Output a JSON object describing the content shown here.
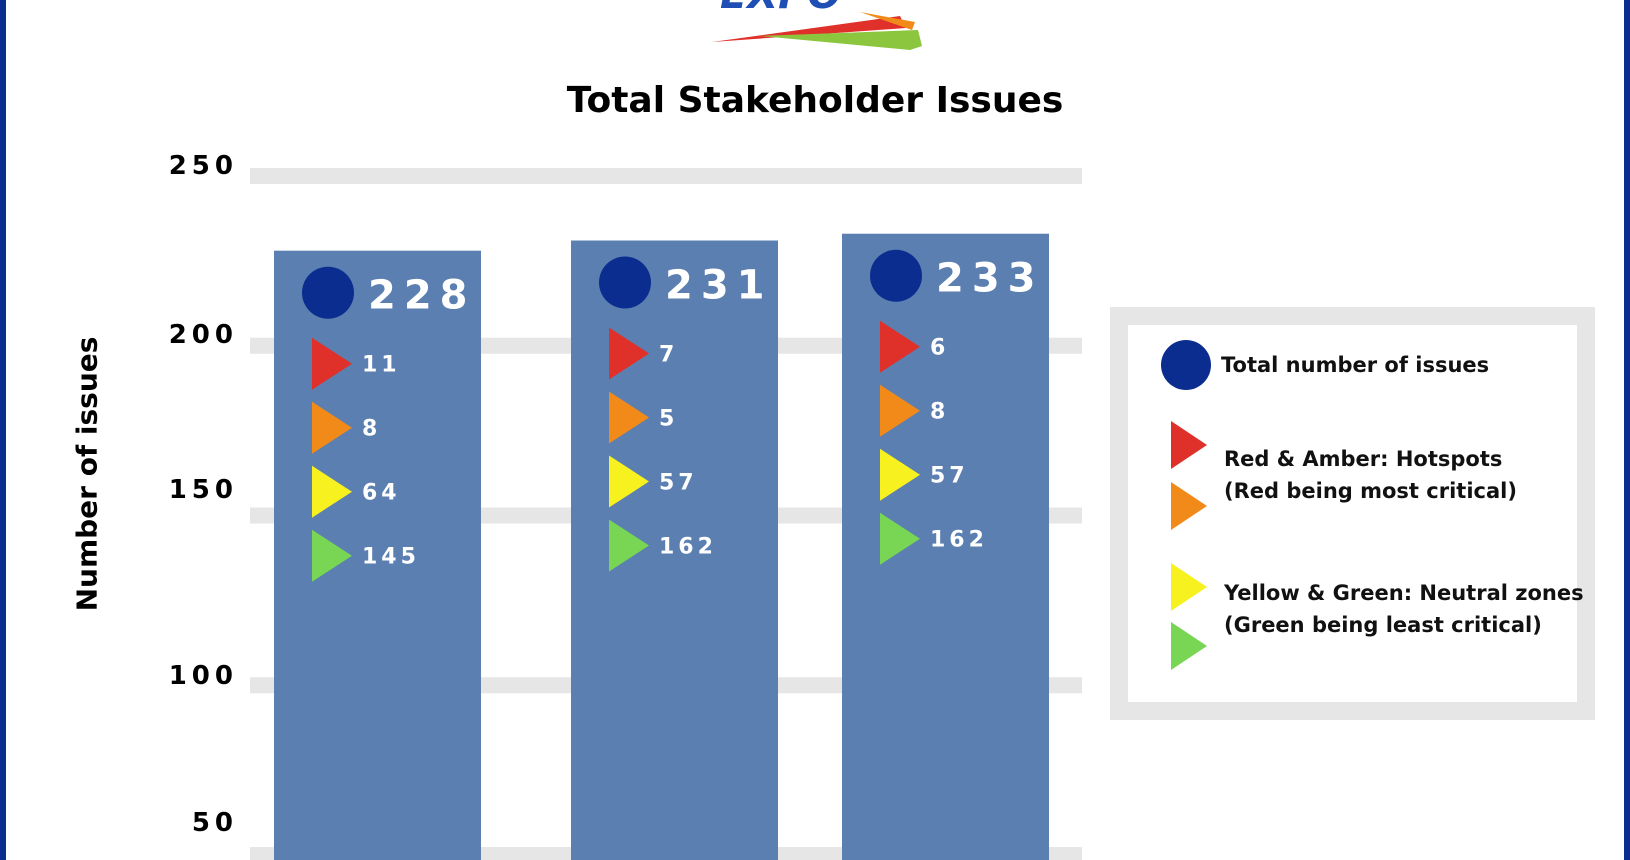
{
  "chart_data": {
    "type": "bar",
    "title": "Total Stakeholder Issues",
    "ylabel": "Number of  issues",
    "ylim": [
      50,
      250
    ],
    "yticks": [
      "250",
      "200",
      "150",
      "100",
      "50"
    ],
    "bar_color": "#5b7fb0",
    "bars": [
      {
        "total": 228,
        "red": 11,
        "amber": 8,
        "yellow": 64,
        "green": 145
      },
      {
        "total": 231,
        "red": 7,
        "amber": 5,
        "yellow": 57,
        "green": 162
      },
      {
        "total": 233,
        "red": 6,
        "amber": 8,
        "yellow": 57,
        "green": 162
      }
    ]
  },
  "legend": {
    "total": "Total number of issues",
    "hotspots_line1": "Red & Amber: Hotspots",
    "hotspots_line2": "(Red being most critical)",
    "neutral_line1": "Yellow & Green: Neutral zones",
    "neutral_line2": "(Green being least critical)"
  },
  "colors": {
    "red": "#e0302a",
    "amber": "#f28a1a",
    "yellow": "#f7f21f",
    "green": "#78d654",
    "navy": "#0b2d8f",
    "grid": "#e6e6e6"
  }
}
